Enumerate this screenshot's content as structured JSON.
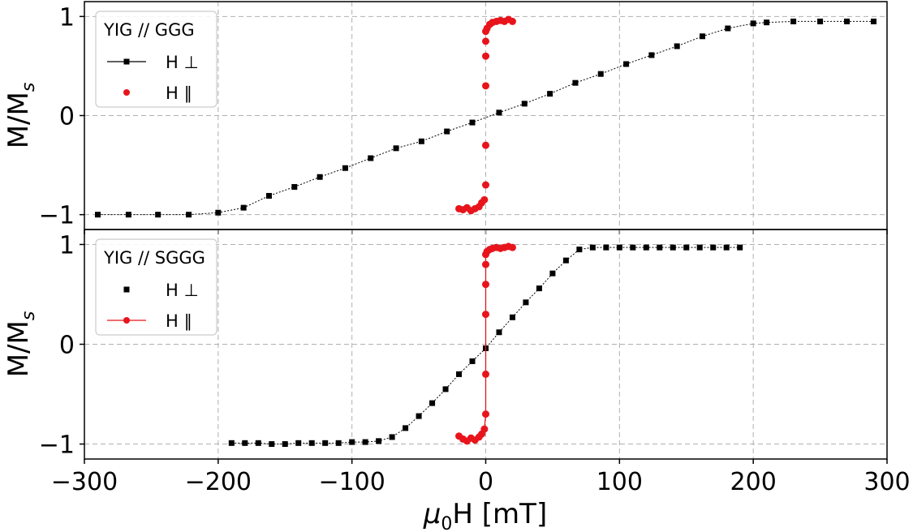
{
  "chart_data": [
    {
      "type": "scatter",
      "panel": "top",
      "xlabel": "",
      "ylabel": "M/M_s",
      "xlim": [
        -300,
        300
      ],
      "ylim": [
        -1.15,
        1.15
      ],
      "xticks": [
        -300,
        -200,
        -100,
        0,
        100,
        200,
        300
      ],
      "yticks": [
        -1,
        0,
        1
      ],
      "xtick_labels": [
        "",
        "",
        "",
        "",
        "",
        "",
        ""
      ],
      "ytick_labels": [
        "−1",
        "0",
        "1"
      ],
      "grid": true,
      "legend": {
        "title": "YIG // GGG",
        "placement": "top-left",
        "entries": [
          {
            "label": "H ⊥",
            "color": "#000000",
            "marker": "square",
            "line": true
          },
          {
            "label": "H ∥",
            "color": "#e8141c",
            "marker": "circle",
            "line": false
          }
        ]
      },
      "series": [
        {
          "name": "H ⊥",
          "color": "#000000",
          "marker": "square",
          "line": true,
          "x": [
            -290,
            -267,
            -245,
            -222,
            -200,
            -181,
            -162,
            -143,
            -124,
            -105,
            -86,
            -67,
            -48,
            -29,
            -10,
            10,
            29,
            48,
            67,
            86,
            105,
            124,
            143,
            162,
            181,
            200,
            210,
            230,
            250,
            270,
            290
          ],
          "y": [
            -1.0,
            -1.0,
            -1.0,
            -1.0,
            -0.98,
            -0.93,
            -0.81,
            -0.72,
            -0.62,
            -0.53,
            -0.43,
            -0.33,
            -0.26,
            -0.16,
            -0.07,
            0.03,
            0.12,
            0.22,
            0.33,
            0.42,
            0.52,
            0.61,
            0.7,
            0.8,
            0.88,
            0.93,
            0.94,
            0.95,
            0.95,
            0.95,
            0.95
          ]
        },
        {
          "name": "H ∥",
          "color": "#e8141c",
          "marker": "circle",
          "line": false,
          "x": [
            -20,
            -17,
            -14,
            -11,
            -8,
            -5,
            -3,
            -1,
            0,
            0,
            0,
            0,
            0,
            0,
            1,
            3,
            5,
            8,
            11,
            14,
            17,
            20
          ],
          "y": [
            -0.94,
            -0.95,
            -0.93,
            -0.96,
            -0.94,
            -0.92,
            -0.88,
            -0.85,
            -0.7,
            -0.3,
            0.3,
            0.6,
            0.75,
            0.85,
            0.88,
            0.92,
            0.94,
            0.95,
            0.96,
            0.95,
            0.97,
            0.95
          ]
        }
      ]
    },
    {
      "type": "scatter",
      "panel": "bottom",
      "xlabel": "μ₀H [mT]",
      "ylabel": "M/M_s",
      "xlim": [
        -300,
        300
      ],
      "ylim": [
        -1.15,
        1.15
      ],
      "xticks": [
        -300,
        -200,
        -100,
        0,
        100,
        200,
        300
      ],
      "yticks": [
        -1,
        0,
        1
      ],
      "xtick_labels": [
        "−300",
        "−200",
        "−100",
        "0",
        "100",
        "200",
        "300"
      ],
      "ytick_labels": [
        "−1",
        "0",
        "1"
      ],
      "grid": true,
      "legend": {
        "title": "YIG // SGGG",
        "placement": "top-left",
        "entries": [
          {
            "label": "H ⊥",
            "color": "#000000",
            "marker": "square",
            "line": false
          },
          {
            "label": "H ∥",
            "color": "#e8141c",
            "marker": "circle",
            "line": true
          }
        ]
      },
      "series": [
        {
          "name": "H ⊥",
          "color": "#000000",
          "marker": "square",
          "line": true,
          "x": [
            -190,
            -180,
            -170,
            -160,
            -150,
            -140,
            -130,
            -120,
            -110,
            -100,
            -90,
            -80,
            -70,
            -60,
            -50,
            -40,
            -30,
            -20,
            -10,
            0,
            10,
            20,
            30,
            40,
            50,
            60,
            70,
            80,
            90,
            100,
            110,
            120,
            130,
            140,
            150,
            160,
            170,
            180,
            190
          ],
          "y": [
            -0.99,
            -0.99,
            -0.99,
            -1.0,
            -1.0,
            -0.99,
            -0.99,
            -0.99,
            -0.99,
            -0.98,
            -0.98,
            -0.97,
            -0.93,
            -0.84,
            -0.72,
            -0.59,
            -0.45,
            -0.3,
            -0.17,
            -0.04,
            0.12,
            0.27,
            0.42,
            0.56,
            0.71,
            0.84,
            0.95,
            0.97,
            0.97,
            0.97,
            0.97,
            0.97,
            0.97,
            0.97,
            0.97,
            0.97,
            0.97,
            0.97,
            0.97
          ]
        },
        {
          "name": "H ∥",
          "color": "#e8141c",
          "marker": "circle",
          "line": true,
          "x": [
            -20,
            -17,
            -14,
            -11,
            -8,
            -5,
            -3,
            -1,
            0,
            0,
            0,
            0,
            0,
            0,
            1,
            3,
            5,
            8,
            11,
            14,
            17,
            20
          ],
          "y": [
            -0.92,
            -0.95,
            -0.97,
            -0.94,
            -0.96,
            -0.93,
            -0.9,
            -0.85,
            -0.7,
            -0.3,
            0.3,
            0.6,
            0.8,
            0.9,
            0.93,
            0.95,
            0.96,
            0.97,
            0.96,
            0.97,
            0.98,
            0.97
          ]
        }
      ]
    }
  ]
}
